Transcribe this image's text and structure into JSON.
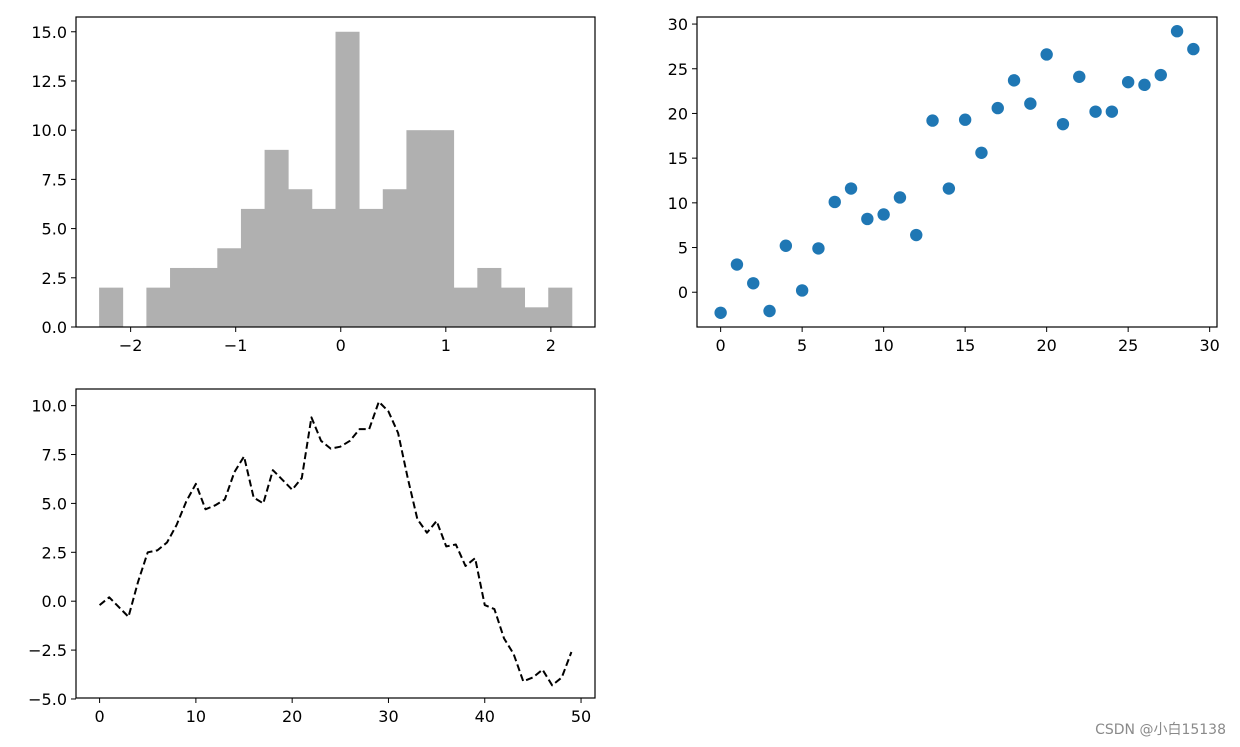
{
  "watermark": "CSDN @小白15138",
  "chart_data": [
    {
      "type": "bar",
      "subtype": "histogram",
      "color": "#b0b0b0",
      "bin_edges": [
        -2.3,
        -2.075,
        -1.85,
        -1.625,
        -1.4,
        -1.175,
        -0.95,
        -0.725,
        -0.5,
        -0.275,
        -0.05,
        0.175,
        0.4,
        0.625,
        0.85,
        1.075,
        1.3,
        1.525,
        1.75,
        1.975,
        2.2
      ],
      "counts": [
        2,
        0,
        2,
        3,
        3,
        4,
        6,
        9,
        7,
        6,
        15,
        6,
        7,
        10,
        10,
        2,
        3,
        2,
        1,
        2
      ],
      "xlim": [
        -2.52,
        2.42
      ],
      "ylim": [
        0,
        15.75
      ],
      "xticks": [
        -2,
        -1,
        0,
        1,
        2
      ],
      "xtick_labels": [
        "−2",
        "−1",
        "0",
        "1",
        "2"
      ],
      "yticks": [
        0.0,
        2.5,
        5.0,
        7.5,
        10.0,
        12.5,
        15.0
      ],
      "ytick_labels": [
        "0.0",
        "2.5",
        "5.0",
        "7.5",
        "10.0",
        "12.5",
        "15.0"
      ],
      "grid": false
    },
    {
      "type": "scatter",
      "color": "#1f77b4",
      "x": [
        0,
        1,
        2,
        3,
        4,
        5,
        6,
        7,
        8,
        9,
        10,
        11,
        12,
        13,
        14,
        15,
        16,
        17,
        18,
        19,
        20,
        21,
        22,
        23,
        24,
        25,
        26,
        27,
        28,
        29
      ],
      "y": [
        -2.3,
        3.1,
        1.0,
        -2.1,
        5.2,
        0.2,
        4.9,
        10.1,
        11.6,
        8.2,
        8.7,
        10.6,
        6.4,
        19.2,
        11.6,
        19.3,
        15.6,
        20.6,
        23.7,
        21.1,
        26.6,
        18.8,
        24.1,
        20.2,
        20.2,
        23.5,
        23.2,
        24.3,
        29.2,
        27.2
      ],
      "xlim": [
        -1.45,
        30.45
      ],
      "ylim": [
        -3.89,
        30.79
      ],
      "xticks": [
        0,
        5,
        10,
        15,
        20,
        25,
        30
      ],
      "xtick_labels": [
        "0",
        "5",
        "10",
        "15",
        "20",
        "25",
        "30"
      ],
      "yticks": [
        0,
        5,
        10,
        15,
        20,
        25,
        30
      ],
      "ytick_labels": [
        "0",
        "5",
        "10",
        "15",
        "20",
        "25",
        "30"
      ],
      "grid": false
    },
    {
      "type": "line",
      "line_style": "dashed",
      "color": "#000000",
      "x": [
        0,
        1,
        2,
        3,
        4,
        5,
        6,
        7,
        8,
        9,
        10,
        11,
        12,
        13,
        14,
        15,
        16,
        17,
        18,
        19,
        20,
        21,
        22,
        23,
        24,
        25,
        26,
        27,
        28,
        29,
        30,
        31,
        32,
        33,
        34,
        35,
        36,
        37,
        38,
        39,
        40,
        41,
        42,
        43,
        44,
        45,
        46,
        47,
        48,
        49
      ],
      "y": [
        -0.2,
        0.2,
        -0.3,
        -0.8,
        1.0,
        2.5,
        2.6,
        3.0,
        3.9,
        5.1,
        6.0,
        4.7,
        4.9,
        5.2,
        6.6,
        7.4,
        5.3,
        5.0,
        6.7,
        6.2,
        5.7,
        6.3,
        9.4,
        8.2,
        7.8,
        7.9,
        8.2,
        8.8,
        8.8,
        10.2,
        9.7,
        8.6,
        6.3,
        4.2,
        3.5,
        4.1,
        2.8,
        2.9,
        1.8,
        2.2,
        -0.2,
        -0.4,
        -1.9,
        -2.7,
        -4.1,
        -3.9,
        -3.5,
        -4.3,
        -3.9,
        -2.6
      ],
      "xlim": [
        -2.45,
        51.45
      ],
      "ylim": [
        -4.95,
        10.85
      ],
      "xticks": [
        0,
        10,
        20,
        30,
        40,
        50
      ],
      "xtick_labels": [
        "0",
        "10",
        "20",
        "30",
        "40",
        "50"
      ],
      "yticks": [
        -5.0,
        -2.5,
        0.0,
        2.5,
        5.0,
        7.5,
        10.0
      ],
      "ytick_labels": [
        "−5.0",
        "−2.5",
        "0.0",
        "2.5",
        "5.0",
        "7.5",
        "10.0"
      ],
      "grid": false
    }
  ]
}
